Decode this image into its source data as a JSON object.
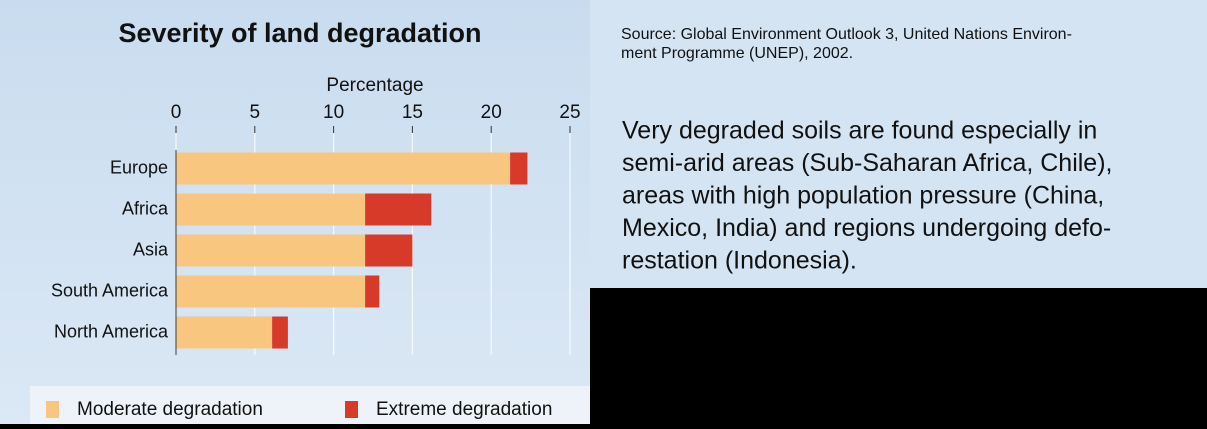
{
  "chart_data": {
    "type": "bar",
    "orientation": "horizontal",
    "stacked": true,
    "title": "Severity of land degradation",
    "xlabel": "Percentage",
    "categories": [
      "Europe",
      "Africa",
      "Asia",
      "South America",
      "North America"
    ],
    "series": [
      {
        "name": "Moderate degradation",
        "color": "#f8c67e",
        "values": [
          21.2,
          12,
          12,
          12,
          6.1
        ]
      },
      {
        "name": "Extreme degradation",
        "color": "#d83a2a",
        "values": [
          1.1,
          4.2,
          3,
          0.9,
          1.0
        ]
      }
    ],
    "xlim": [
      0,
      25
    ],
    "xticks": [
      0,
      5,
      10,
      15,
      20,
      25
    ],
    "grid": true,
    "source": [
      "Source: Global Environment Outlook 3, United Nations Environ-",
      "ment Programme (UNEP), 2002."
    ],
    "description": [
      "Very degraded soils are found especially in",
      "semi-arid areas (Sub-Saharan Africa, Chile),",
      "areas with high population pressure (China,",
      "Mexico, India) and regions undergoing defo-",
      "restation (Indonesia)."
    ]
  }
}
